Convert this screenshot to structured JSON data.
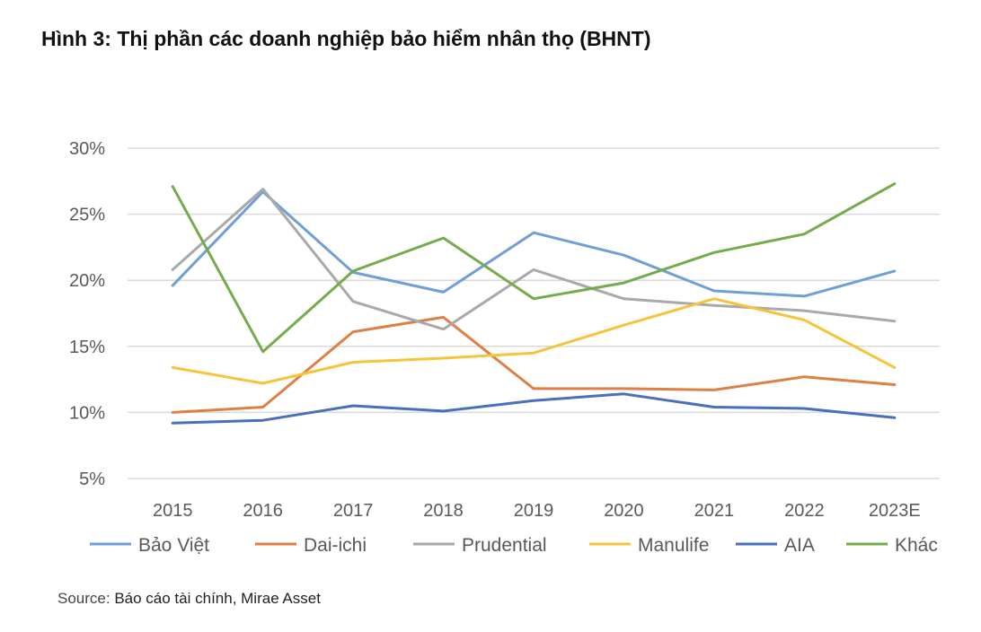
{
  "title": "Hình 3: Thị phần các doanh nghiệp bảo hiểm nhân thọ (BHNT)",
  "source": {
    "label": "Source:",
    "text": "Báo cáo tài chính, Mirae Asset"
  },
  "chart_data": {
    "type": "line",
    "categories": [
      "2015",
      "2016",
      "2017",
      "2018",
      "2019",
      "2020",
      "2021",
      "2022",
      "2023E"
    ],
    "y_ticks": [
      "5%",
      "10%",
      "15%",
      "20%",
      "25%",
      "30%"
    ],
    "y_tick_values": [
      5,
      10,
      15,
      20,
      25,
      30
    ],
    "ylim": [
      5,
      30
    ],
    "grid": true,
    "legend_position": "bottom",
    "series": [
      {
        "name": "Bảo Việt",
        "color": "#6f9fd6",
        "values": [
          19.6,
          26.7,
          20.6,
          19.1,
          23.6,
          21.9,
          19.2,
          18.8,
          20.7
        ]
      },
      {
        "name": "Dai-ichi",
        "color": "#e07f45",
        "values": [
          10.0,
          10.4,
          16.1,
          17.2,
          11.8,
          11.8,
          11.7,
          12.7,
          12.1
        ]
      },
      {
        "name": "Prudential",
        "color": "#a9a9a9",
        "values": [
          20.8,
          26.9,
          18.4,
          16.3,
          20.8,
          18.6,
          18.1,
          17.7,
          16.9
        ]
      },
      {
        "name": "Manulife",
        "color": "#f5c43a",
        "values": [
          13.4,
          12.2,
          13.8,
          14.1,
          14.5,
          16.6,
          18.6,
          17.0,
          13.4
        ]
      },
      {
        "name": "AIA",
        "color": "#4a6fbd",
        "values": [
          9.2,
          9.4,
          10.5,
          10.1,
          10.9,
          11.4,
          10.4,
          10.3,
          9.6
        ]
      },
      {
        "name": "Khác",
        "color": "#74ac4c",
        "values": [
          27.1,
          14.6,
          20.7,
          23.2,
          18.6,
          19.8,
          22.1,
          23.5,
          27.3
        ]
      }
    ]
  }
}
